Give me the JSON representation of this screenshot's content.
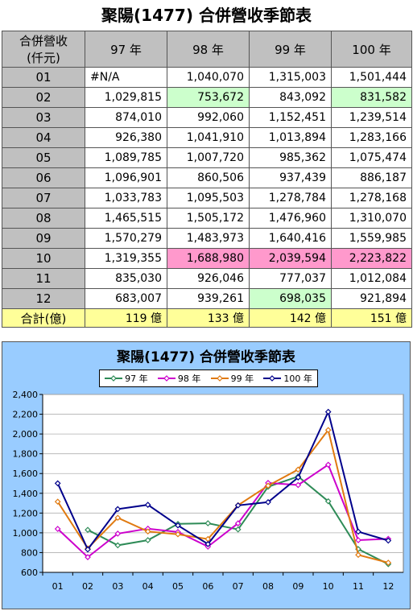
{
  "title": "聚陽(1477) 合併營收季節表",
  "table": {
    "corner": [
      "合併營收",
      "(仟元)"
    ],
    "years": [
      "97 年",
      "98 年",
      "99 年",
      "100 年"
    ],
    "rows": [
      {
        "month": "01",
        "cells": [
          "#N/A",
          "1,040,070",
          "1,315,003",
          "1,501,444"
        ]
      },
      {
        "month": "02",
        "cells": [
          "1,029,815",
          "753,672",
          "843,092",
          "831,582"
        ]
      },
      {
        "month": "03",
        "cells": [
          "874,010",
          "992,060",
          "1,152,451",
          "1,239,514"
        ]
      },
      {
        "month": "04",
        "cells": [
          "926,380",
          "1,041,910",
          "1,013,894",
          "1,283,166"
        ]
      },
      {
        "month": "05",
        "cells": [
          "1,089,785",
          "1,007,720",
          "985,362",
          "1,075,474"
        ]
      },
      {
        "month": "06",
        "cells": [
          "1,096,901",
          "860,506",
          "937,439",
          "886,187"
        ]
      },
      {
        "month": "07",
        "cells": [
          "1,033,783",
          "1,095,503",
          "1,278,784",
          "1,278,168"
        ]
      },
      {
        "month": "08",
        "cells": [
          "1,465,515",
          "1,505,172",
          "1,476,960",
          "1,310,070"
        ]
      },
      {
        "month": "09",
        "cells": [
          "1,570,279",
          "1,483,973",
          "1,640,416",
          "1,559,985"
        ]
      },
      {
        "month": "10",
        "cells": [
          "1,319,355",
          "1,688,980",
          "2,039,594",
          "2,223,822"
        ]
      },
      {
        "month": "11",
        "cells": [
          "835,030",
          "926,046",
          "777,037",
          "1,012,084"
        ]
      },
      {
        "month": "12",
        "cells": [
          "683,007",
          "939,261",
          "698,035",
          "921,894"
        ]
      }
    ],
    "total_label": "合計(億)",
    "totals": [
      "119 億",
      "133 億",
      "142 億",
      "151 億"
    ]
  },
  "colors": {
    "header_gray": "#c0c0c0",
    "highlight_green": "#ccffcc",
    "highlight_pink": "#ff99cc",
    "total_yellow": "#ffff99",
    "chart_bg": "#99ccff"
  },
  "chart_data": {
    "type": "line",
    "title": "聚陽(1477) 合併營收季節表",
    "categories": [
      "01",
      "02",
      "03",
      "04",
      "05",
      "06",
      "07",
      "08",
      "09",
      "10",
      "11",
      "12"
    ],
    "ylim": [
      600,
      2400
    ],
    "yticks": [
      "600",
      "800",
      "1,000",
      "1,200",
      "1,400",
      "1,600",
      "1,800",
      "2,000",
      "2,200",
      "2,400"
    ],
    "grid": true,
    "legend_position": "top",
    "series": [
      {
        "name": "97 年",
        "color": "#2e8b57",
        "values": [
          null,
          1030,
          874,
          926,
          1090,
          1097,
          1034,
          1466,
          1570,
          1319,
          835,
          683
        ]
      },
      {
        "name": "98 年",
        "color": "#cc00cc",
        "values": [
          1040,
          754,
          992,
          1042,
          1008,
          861,
          1096,
          1505,
          1484,
          1689,
          926,
          939
        ]
      },
      {
        "name": "99 年",
        "color": "#e07a10",
        "values": [
          1315,
          843,
          1152,
          1014,
          985,
          937,
          1279,
          1477,
          1640,
          2040,
          777,
          698
        ]
      },
      {
        "name": "100 年",
        "color": "#00008b",
        "values": [
          1501,
          832,
          1240,
          1283,
          1075,
          886,
          1278,
          1310,
          1560,
          2224,
          1012,
          922
        ]
      }
    ]
  }
}
